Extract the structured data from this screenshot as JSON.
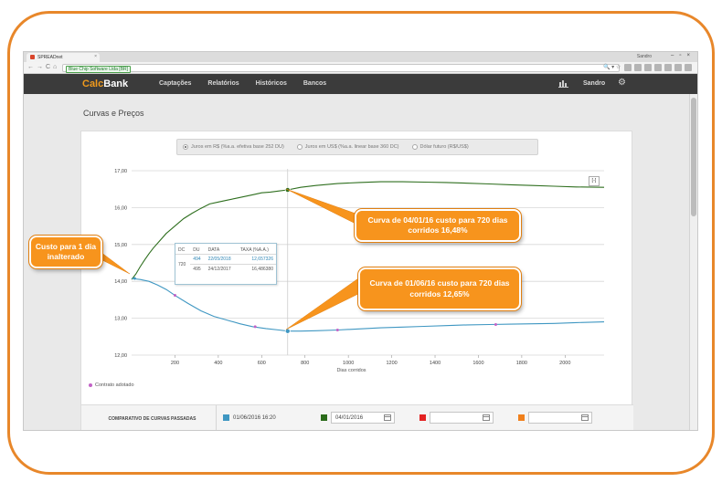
{
  "browser": {
    "tab_title": "SPREADnet",
    "window_user": "Sandro",
    "url_secure_label": "Blue Chip Software Ltda [BR]"
  },
  "app": {
    "logo_calc": "Calc",
    "logo_bank": "Bank",
    "menu": [
      "Captações",
      "Relatórios",
      "Históricos",
      "Bancos"
    ],
    "user": "Sandro"
  },
  "page": {
    "title": "Curvas e Preços"
  },
  "radios": [
    {
      "label": "Juros em R$ (%a.a. efetiva base 252 DU)",
      "selected": true
    },
    {
      "label": "Juros em US$ (%a.a. linear base 360 DC)",
      "selected": false
    },
    {
      "label": "Dólar futuro (R$/US$)",
      "selected": false
    }
  ],
  "collapse_label": "[-]",
  "chart_data": {
    "type": "line",
    "xlabel": "Dias corridos",
    "ylabel": "",
    "xlim": [
      0,
      2180
    ],
    "ylim": [
      12.0,
      17.0
    ],
    "x_ticks": [
      200,
      400,
      600,
      800,
      1000,
      1200,
      1400,
      1600,
      1800,
      2000
    ],
    "y_ticks": [
      "12,00",
      "13,00",
      "14,00",
      "15,00",
      "16,00",
      "17,00"
    ],
    "grid": true,
    "series": [
      {
        "color": "#2f6f1f",
        "x": [
          0,
          20,
          40,
          60,
          80,
          100,
          130,
          160,
          200,
          240,
          280,
          320,
          360,
          400,
          440,
          480,
          520,
          560,
          600,
          640,
          680,
          720,
          780,
          850,
          950,
          1050,
          1150,
          1250,
          1350,
          1450,
          1550,
          1650,
          1750,
          1850,
          1950,
          2050,
          2180
        ],
        "y": [
          14.05,
          14.2,
          14.4,
          14.58,
          14.75,
          14.9,
          15.1,
          15.3,
          15.5,
          15.7,
          15.85,
          15.98,
          16.1,
          16.15,
          16.2,
          16.25,
          16.3,
          16.35,
          16.4,
          16.42,
          16.45,
          16.48,
          16.55,
          16.6,
          16.65,
          16.68,
          16.7,
          16.7,
          16.69,
          16.68,
          16.66,
          16.64,
          16.62,
          16.6,
          16.58,
          16.56,
          16.55
        ]
      },
      {
        "color": "#3f97c2",
        "x": [
          0,
          40,
          80,
          120,
          160,
          200,
          260,
          320,
          380,
          440,
          500,
          560,
          620,
          680,
          720,
          780,
          850,
          950,
          1050,
          1150,
          1250,
          1350,
          1450,
          1550,
          1650,
          1750,
          1850,
          1950,
          2050,
          2180
        ],
        "y": [
          14.08,
          14.05,
          14.0,
          13.9,
          13.78,
          13.62,
          13.4,
          13.2,
          13.05,
          12.95,
          12.85,
          12.77,
          12.72,
          12.68,
          12.65,
          12.65,
          12.66,
          12.68,
          12.71,
          12.74,
          12.76,
          12.78,
          12.8,
          12.82,
          12.83,
          12.84,
          12.85,
          12.86,
          12.88,
          12.9
        ]
      }
    ],
    "contract_points": [
      {
        "x": 720,
        "y": 16.48,
        "color": "#2f6f1f"
      },
      {
        "x": 720,
        "y": 12.65,
        "color": "#3f97c2"
      },
      {
        "x": 14,
        "y": 14.08,
        "color": "#3f97c2"
      },
      {
        "x": 200,
        "y": 13.62,
        "color": "#c262c6"
      },
      {
        "x": 570,
        "y": 12.77,
        "color": "#c262c6"
      },
      {
        "x": 950,
        "y": 12.68,
        "color": "#c262c6"
      },
      {
        "x": 1680,
        "y": 12.83,
        "color": "#c262c6"
      }
    ],
    "crosshair_x": 720
  },
  "tooltip": {
    "headers": [
      "DC",
      "DU",
      "DATA",
      "TAXA (%A.A.)"
    ],
    "dc": "720",
    "rows": [
      {
        "du": "494",
        "data": "22/05/2018",
        "taxa": "12,657326"
      },
      {
        "du": "495",
        "data": "24/12/2017",
        "taxa": "16,486380"
      }
    ]
  },
  "legend": {
    "contract_label": "Contrato adotado"
  },
  "comparison": {
    "title": "COMPARATIVO DE CURVAS PASSADAS",
    "items": [
      {
        "color": "#3f97c2",
        "text": "01/06/2016 16:20"
      },
      {
        "color": "#2a6b1a",
        "value": "04/01/2016"
      },
      {
        "color": "#e32222",
        "value": ""
      },
      {
        "color": "#f0801c",
        "value": ""
      }
    ]
  },
  "callouts": {
    "left": "Custo para 1 dia inalterado",
    "top": "Curva de 04/01/16 custo para 720 dias corridos 16,48%",
    "bottom": "Curva de 01/06/16 custo para 720 dias corridos 12,65%"
  }
}
